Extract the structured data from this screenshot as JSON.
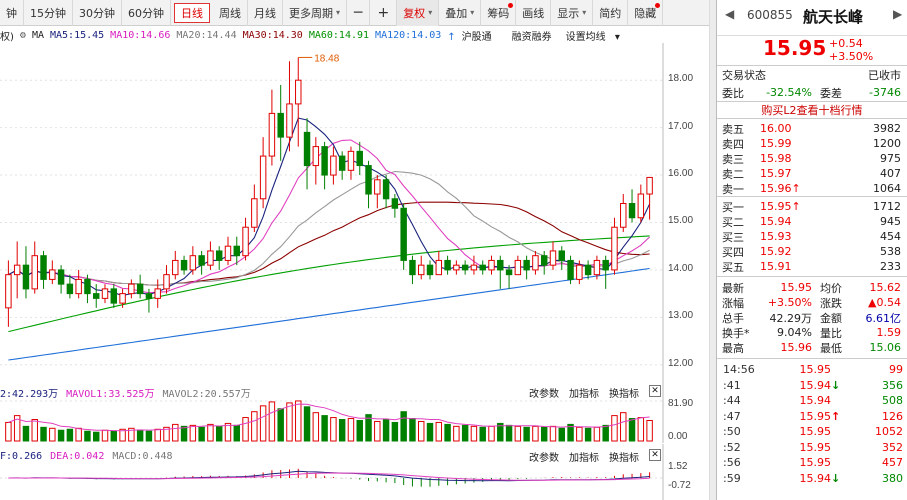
{
  "toolbar": {
    "items": [
      "钟",
      "15分钟",
      "30分钟",
      "60分钟",
      "日线",
      "周线",
      "月线",
      "更多周期",
      "─",
      "+",
      "复权",
      "叠加",
      "筹码",
      "画线",
      "显示",
      "简约",
      "隐藏"
    ],
    "active_period": "日线",
    "dropdown_more": "▾"
  },
  "ma_bar": {
    "prefix": "权)",
    "label": "MA",
    "ma5": "MA5:15.45",
    "ma10": "MA10:14.66",
    "ma20": "MA20:14.44",
    "ma30": "MA30:14.30",
    "ma60": "MA60:14.91",
    "ma120": "MA120:14.03",
    "hgt": "沪股通",
    "margin": "融资融券",
    "setting": "设置均线"
  },
  "colors": {
    "up": "#e00000",
    "down": "#008000",
    "ma5": "#1a237e",
    "ma10": "#e040c0",
    "ma20": "#999999",
    "ma30": "#8b0000",
    "ma60": "#00a000",
    "ma120": "#1e6fd9"
  },
  "price_axis": [
    "18.00",
    "17.00",
    "16.00",
    "15.00",
    "14.00",
    "13.00",
    "12.00"
  ],
  "high_marker": "18.48",
  "vol_header": {
    "vol": "2:42.293万",
    "mavol1": "MAVOL1:33.525万",
    "mavol2": "MAVOL2:20.557万",
    "b1": "改参数",
    "b2": "加指标",
    "b3": "换指标"
  },
  "vol_axis": [
    "81.90",
    "0.00"
  ],
  "macd_header": {
    "diff": "F:0.266",
    "dea": "DEA:0.042",
    "macd": "MACD:0.448",
    "b1": "改参数",
    "b2": "加指标",
    "b3": "换指标"
  },
  "macd_axis": [
    "1.52",
    "-0.72"
  ],
  "stock": {
    "code": "600855",
    "name": "航天长峰",
    "price": "15.95",
    "change": "+0.54",
    "change_pct": "+3.50%",
    "status_label": "交易状态",
    "status": "已收市",
    "weibi_label": "委比",
    "weibi": "-32.54%",
    "weicha_label": "委差",
    "weicha": "-3746",
    "l2_link": "购买L2查看十档行情"
  },
  "sell_book": [
    {
      "label": "卖五",
      "price": "16.00",
      "vol": "3982",
      "arrow": ""
    },
    {
      "label": "卖四",
      "price": "15.99",
      "vol": "1200",
      "arrow": ""
    },
    {
      "label": "卖三",
      "price": "15.98",
      "vol": "975",
      "arrow": ""
    },
    {
      "label": "卖二",
      "price": "15.97",
      "vol": "407",
      "arrow": ""
    },
    {
      "label": "卖一",
      "price": "15.96",
      "vol": "1064",
      "arrow": "↑"
    }
  ],
  "buy_book": [
    {
      "label": "买一",
      "price": "15.95",
      "vol": "1712",
      "arrow": "↑"
    },
    {
      "label": "买二",
      "price": "15.94",
      "vol": "945",
      "arrow": ""
    },
    {
      "label": "买三",
      "price": "15.93",
      "vol": "454",
      "arrow": ""
    },
    {
      "label": "买四",
      "price": "15.92",
      "vol": "538",
      "arrow": ""
    },
    {
      "label": "买五",
      "price": "15.91",
      "vol": "233",
      "arrow": ""
    }
  ],
  "quote": [
    {
      "l1": "最新",
      "v1": "15.95",
      "l2": "均价",
      "v2": "15.62",
      "c1": "red",
      "c2": "red"
    },
    {
      "l1": "涨幅",
      "v1": "+3.50%",
      "l2": "涨跌",
      "v2": "▲0.54",
      "c1": "red",
      "c2": "red"
    },
    {
      "l1": "总手",
      "v1": "42.29万",
      "l2": "金额",
      "v2": "6.61亿",
      "c1": "",
      "c2": "blue"
    },
    {
      "l1": "换手*",
      "v1": "9.04%",
      "l2": "量比",
      "v2": "1.59",
      "c1": "",
      "c2": "red"
    },
    {
      "l1": "最高",
      "v1": "15.96",
      "l2": "最低",
      "v2": "15.06",
      "c1": "red",
      "c2": "green"
    }
  ],
  "ticks": [
    {
      "t": "14:56",
      "p": "15.95",
      "a": "",
      "v": "99",
      "pc": "red",
      "ac": "",
      "vc": "red"
    },
    {
      "t": ":41",
      "p": "15.94",
      "a": "↓",
      "v": "356",
      "pc": "red",
      "ac": "green",
      "vc": "green"
    },
    {
      "t": ":44",
      "p": "15.94",
      "a": "",
      "v": "508",
      "pc": "red",
      "ac": "",
      "vc": "green"
    },
    {
      "t": ":47",
      "p": "15.95",
      "a": "↑",
      "v": "126",
      "pc": "red",
      "ac": "red",
      "vc": "red"
    },
    {
      "t": ":50",
      "p": "15.95",
      "a": "",
      "v": "1052",
      "pc": "red",
      "ac": "",
      "vc": "red"
    },
    {
      "t": ":52",
      "p": "15.95",
      "a": "",
      "v": "352",
      "pc": "red",
      "ac": "",
      "vc": "red"
    },
    {
      "t": ":56",
      "p": "15.95",
      "a": "",
      "v": "457",
      "pc": "red",
      "ac": "",
      "vc": "red"
    },
    {
      "t": ":59",
      "p": "15.94",
      "a": "↓",
      "v": "380",
      "pc": "red",
      "ac": "green",
      "vc": "green"
    }
  ],
  "chart_data": {
    "type": "candlestick",
    "ylim": [
      11.7,
      18.7
    ],
    "candles": [
      [
        13.2,
        13.9,
        12.8,
        14.2
      ],
      [
        13.9,
        14.1,
        13.4,
        14.6
      ],
      [
        14.1,
        13.6,
        13.4,
        14.5
      ],
      [
        13.6,
        14.3,
        13.5,
        14.6
      ],
      [
        14.3,
        13.8,
        13.6,
        14.4
      ],
      [
        13.8,
        14.0,
        13.7,
        14.2
      ],
      [
        14.0,
        13.7,
        13.5,
        14.1
      ],
      [
        13.7,
        13.5,
        13.4,
        13.9
      ],
      [
        13.5,
        13.8,
        13.4,
        14.0
      ],
      [
        13.8,
        13.5,
        13.3,
        13.9
      ],
      [
        13.5,
        13.4,
        13.2,
        13.7
      ],
      [
        13.4,
        13.6,
        13.3,
        13.7
      ],
      [
        13.6,
        13.3,
        13.2,
        13.7
      ],
      [
        13.3,
        13.5,
        13.2,
        13.6
      ],
      [
        13.5,
        13.7,
        13.4,
        13.8
      ],
      [
        13.7,
        13.5,
        13.4,
        13.9
      ],
      [
        13.5,
        13.4,
        13.1,
        13.6
      ],
      [
        13.4,
        13.6,
        13.2,
        13.8
      ],
      [
        13.6,
        13.9,
        13.5,
        14.1
      ],
      [
        13.9,
        14.2,
        13.8,
        14.4
      ],
      [
        14.2,
        14.0,
        13.9,
        14.3
      ],
      [
        14.0,
        14.3,
        13.9,
        14.5
      ],
      [
        14.3,
        14.1,
        13.9,
        14.4
      ],
      [
        14.1,
        14.4,
        14.0,
        14.6
      ],
      [
        14.4,
        14.2,
        14.0,
        14.5
      ],
      [
        14.2,
        14.5,
        14.1,
        14.7
      ],
      [
        14.5,
        14.3,
        14.1,
        14.7
      ],
      [
        14.3,
        14.9,
        14.2,
        15.1
      ],
      [
        14.9,
        15.5,
        14.8,
        15.8
      ],
      [
        15.5,
        16.4,
        15.3,
        16.8
      ],
      [
        16.4,
        17.3,
        16.2,
        17.8
      ],
      [
        17.3,
        16.8,
        16.3,
        17.9
      ],
      [
        16.8,
        17.5,
        16.5,
        18.4
      ],
      [
        17.5,
        18.0,
        16.6,
        18.48
      ],
      [
        16.9,
        16.2,
        15.7,
        17.2
      ],
      [
        16.2,
        16.6,
        15.8,
        16.8
      ],
      [
        16.6,
        16.0,
        15.7,
        16.7
      ],
      [
        16.0,
        16.4,
        15.8,
        16.6
      ],
      [
        16.4,
        16.1,
        15.9,
        16.5
      ],
      [
        16.1,
        16.5,
        15.9,
        16.6
      ],
      [
        16.5,
        16.2,
        16.0,
        16.7
      ],
      [
        16.2,
        15.6,
        15.3,
        16.3
      ],
      [
        15.6,
        15.9,
        15.3,
        16.0
      ],
      [
        15.9,
        15.5,
        15.3,
        16.0
      ],
      [
        15.5,
        15.3,
        15.1,
        15.6
      ],
      [
        15.3,
        14.2,
        14.0,
        15.4
      ],
      [
        14.2,
        13.9,
        13.7,
        14.3
      ],
      [
        13.9,
        14.1,
        13.8,
        14.3
      ],
      [
        14.1,
        13.9,
        13.8,
        14.2
      ],
      [
        13.9,
        14.2,
        13.9,
        14.4
      ],
      [
        14.2,
        14.0,
        13.9,
        14.3
      ],
      [
        14.0,
        14.1,
        13.9,
        14.2
      ],
      [
        14.1,
        14.0,
        13.9,
        14.2
      ],
      [
        14.0,
        14.1,
        13.9,
        14.3
      ],
      [
        14.1,
        14.0,
        13.9,
        14.2
      ],
      [
        14.0,
        14.2,
        13.9,
        14.3
      ],
      [
        14.2,
        14.0,
        13.6,
        14.3
      ],
      [
        14.0,
        13.9,
        13.6,
        14.1
      ],
      [
        13.9,
        14.2,
        13.9,
        14.3
      ],
      [
        14.2,
        14.0,
        13.8,
        14.3
      ],
      [
        14.0,
        14.3,
        13.9,
        14.4
      ],
      [
        14.3,
        14.1,
        13.9,
        14.4
      ],
      [
        14.1,
        14.4,
        14.0,
        14.6
      ],
      [
        14.4,
        14.2,
        14.0,
        14.5
      ],
      [
        14.2,
        13.8,
        13.7,
        14.3
      ],
      [
        13.8,
        14.1,
        13.7,
        14.2
      ],
      [
        14.1,
        13.9,
        13.8,
        14.2
      ],
      [
        13.9,
        14.2,
        13.8,
        14.3
      ],
      [
        14.2,
        14.0,
        13.6,
        14.3
      ],
      [
        14.0,
        14.9,
        13.9,
        15.1
      ],
      [
        14.9,
        15.4,
        14.8,
        15.6
      ],
      [
        15.4,
        15.1,
        15.0,
        15.7
      ],
      [
        15.1,
        15.6,
        15.0,
        15.8
      ],
      [
        15.6,
        15.95,
        15.06,
        15.96
      ]
    ],
    "volume_max": 81.9,
    "volumes": [
      38,
      52,
      30,
      44,
      28,
      26,
      22,
      24,
      26,
      20,
      18,
      22,
      20,
      24,
      26,
      22,
      20,
      24,
      28,
      34,
      30,
      32,
      28,
      34,
      30,
      36,
      32,
      48,
      60,
      72,
      80,
      66,
      78,
      82,
      70,
      58,
      52,
      48,
      44,
      46,
      42,
      54,
      40,
      44,
      38,
      60,
      46,
      40,
      36,
      38,
      34,
      30,
      32,
      30,
      28,
      30,
      36,
      32,
      30,
      28,
      30,
      28,
      30,
      26,
      34,
      28,
      26,
      28,
      32,
      52,
      58,
      46,
      48,
      42
    ]
  }
}
